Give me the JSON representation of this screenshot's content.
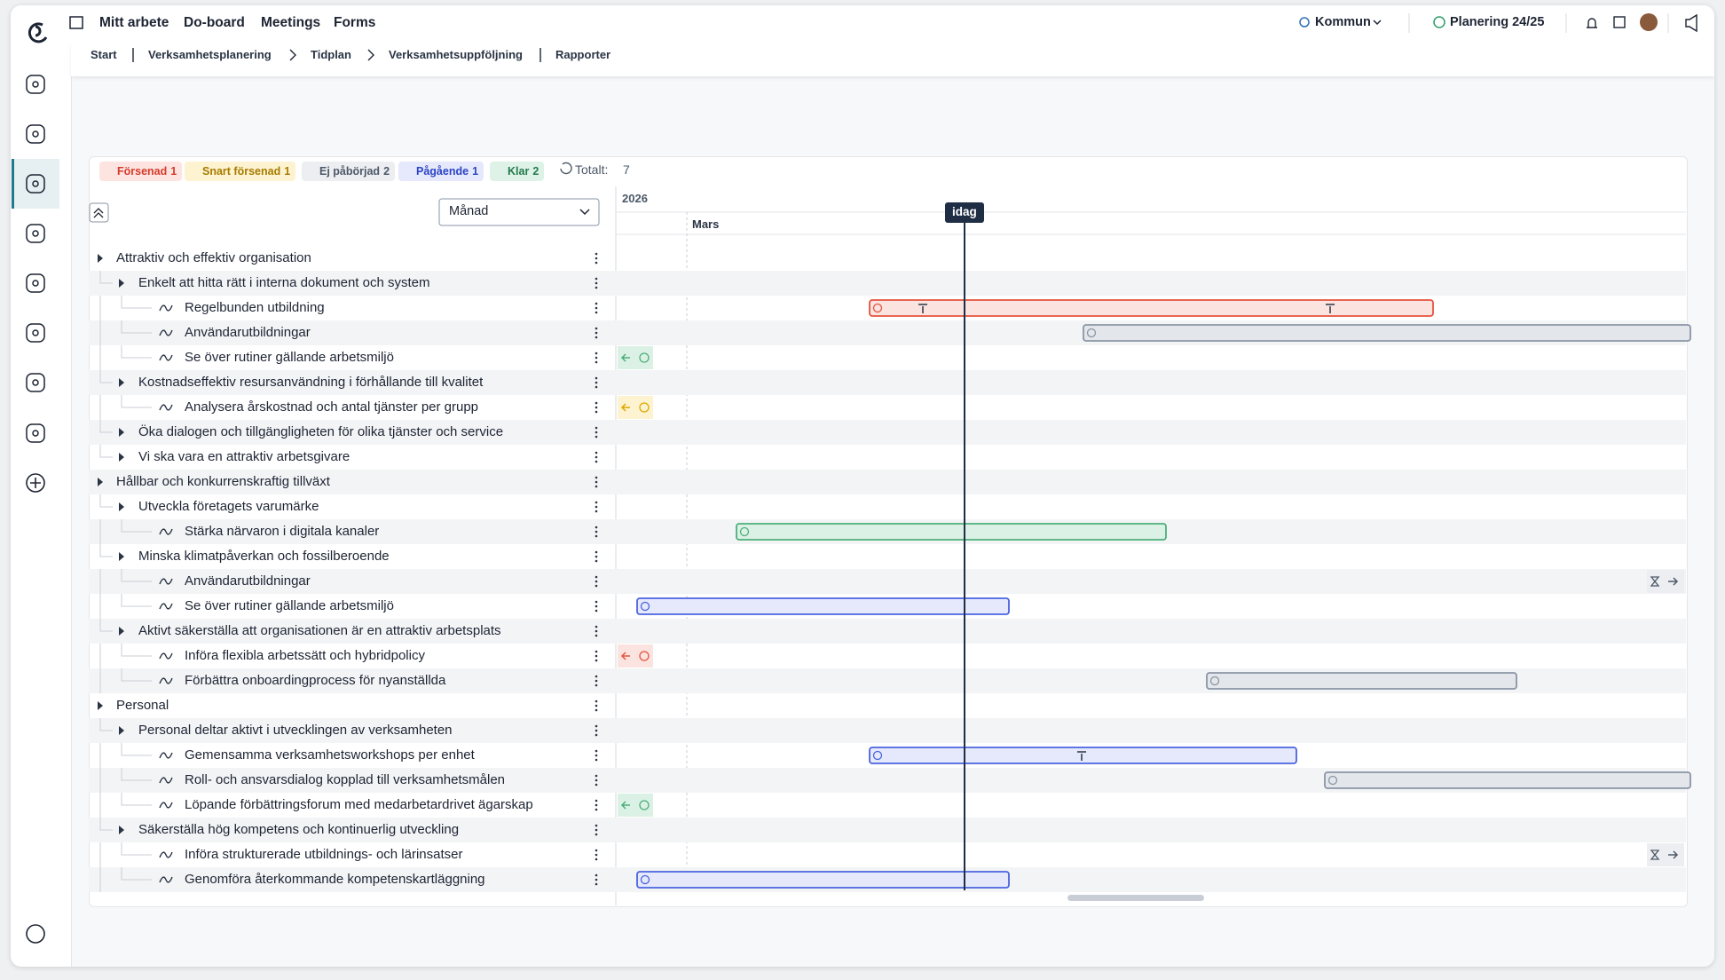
{
  "nav": {
    "items": [
      "Mitt arbete",
      "Do-board",
      "Meetings",
      "Forms"
    ],
    "org": "Kommun",
    "plan": "Planering 24/25"
  },
  "breadcrumbs": [
    "Start",
    "Verksamhetsplanering",
    "Tidplan",
    "Verksamhetsuppföljning",
    "Rapporter"
  ],
  "status": {
    "chips": [
      {
        "label": "Försenad",
        "count": 1
      },
      {
        "label": "Snart försenad",
        "count": 1
      },
      {
        "label": "Ej påbörjad",
        "count": 2
      },
      {
        "label": "Pågående",
        "count": 1
      },
      {
        "label": "Klar",
        "count": 2
      }
    ],
    "total_label": "Totalt:",
    "total": 7
  },
  "controls": {
    "view": "Månad"
  },
  "timeline": {
    "year": "2026",
    "month": "Mars",
    "today": "idag"
  },
  "rows": [
    {
      "label": "Attraktiv och effektiv organisation",
      "level": 0
    },
    {
      "label": "Enkelt att hitta rätt i interna dokument och system",
      "level": 1
    },
    {
      "label": "Regelbunden utbildning",
      "level": 2
    },
    {
      "label": "Användarutbildningar",
      "level": 2
    },
    {
      "label": "Se över rutiner gällande arbetsmiljö",
      "level": 2
    },
    {
      "label": "Kostnadseffektiv resursanvändning i förhållande till kvalitet",
      "level": 1
    },
    {
      "label": "Analysera årskostnad och antal tjänster per grupp",
      "level": 2
    },
    {
      "label": "Öka dialogen och tillgängligheten för olika tjänster och service",
      "level": 1
    },
    {
      "label": "Vi ska vara en attraktiv arbetsgivare",
      "level": 1
    },
    {
      "label": "Hållbar och konkurrenskraftig tillväxt",
      "level": 0
    },
    {
      "label": "Utveckla företagets varumärke",
      "level": 1
    },
    {
      "label": "Stärka närvaron i digitala kanaler",
      "level": 2
    },
    {
      "label": "Minska klimatpåverkan och fossilberoende",
      "level": 1
    },
    {
      "label": "Användarutbildningar",
      "level": 2
    },
    {
      "label": "Se över rutiner gällande arbetsmiljö",
      "level": 2
    },
    {
      "label": "Aktivt säkerställa att organisationen är en attraktiv arbetsplats",
      "level": 1
    },
    {
      "label": "Införa flexibla arbetssätt och hybridpolicy",
      "level": 2
    },
    {
      "label": "Förbättra onboardingprocess för nyanställda",
      "level": 2
    },
    {
      "label": "Personal",
      "level": 0
    },
    {
      "label": "Personal deltar aktivt i utvecklingen av verksamheten",
      "level": 1
    },
    {
      "label": "Gemensamma verksamhetsworkshops per enhet",
      "level": 2
    },
    {
      "label": "Roll- och ansvarsdialog kopplad till verksamhetsmålen",
      "level": 2
    },
    {
      "label": "Löpande förbättringsforum med medarbetardrivet ägarskap",
      "level": 2
    },
    {
      "label": "Säkerställa hög kompetens och kontinuerlig utveckling",
      "level": 1
    },
    {
      "label": "Införa strukturerade utbildnings- och lärinsatser",
      "level": 2
    },
    {
      "label": "Genomföra återkommande kompetenskartläggning",
      "level": 2
    }
  ]
}
